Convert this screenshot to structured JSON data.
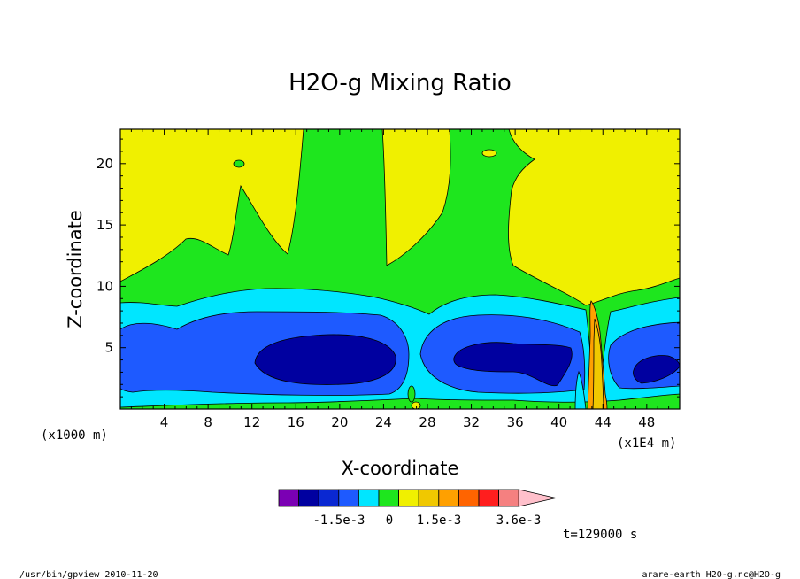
{
  "chart_data": {
    "type": "contour",
    "title": "H2O-g Mixing Ratio",
    "xlabel": "X-coordinate",
    "ylabel": "Z-coordinate",
    "x_unit": "(x1000 m)",
    "x_scale_note": "(x1E4 m)",
    "xlim": [
      0,
      51
    ],
    "ylim": [
      0,
      22.8
    ],
    "x_ticks": [
      4,
      8,
      12,
      16,
      20,
      24,
      28,
      32,
      36,
      40,
      44,
      48
    ],
    "y_ticks": [
      5,
      10,
      15,
      20
    ],
    "colorbar": {
      "colors": [
        "#7b00b4",
        "#0000a0",
        "#0a28d2",
        "#1e5aff",
        "#00e6ff",
        "#1ee61e",
        "#f0f000",
        "#f0c800",
        "#ffa000",
        "#ff6400",
        "#ff1e1e",
        "#f58080",
        "#ffc0cb"
      ],
      "labels": [
        "-1.5e-3",
        "0",
        "1.5e-3",
        "3.6e-3"
      ],
      "extend": "max"
    },
    "bands_note": "filled contour levels from low (dark blue) near z=2-7 to high (yellow) aloft",
    "time_label": "t=129000 s"
  },
  "footer": {
    "left": "/usr/bin/gpview  2010-11-20",
    "right": "arare-earth_H2O-g.nc@H2O-g"
  }
}
